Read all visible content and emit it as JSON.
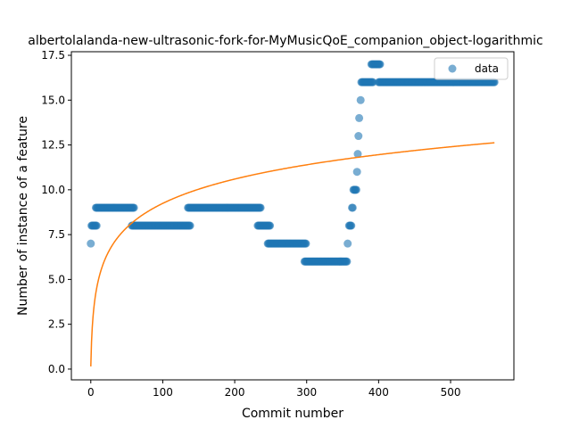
{
  "chart_data": {
    "type": "scatter",
    "title": "albertolalanda-new-ultrasonic-fork-for-MyMusicQoE_companion_object-logarithmic",
    "xlabel": "Commit number",
    "ylabel": "Number of instance of a feature",
    "xlim": [
      -27,
      588
    ],
    "ylim": [
      -0.6,
      17.7
    ],
    "xticks": [
      0,
      100,
      200,
      300,
      400,
      500
    ],
    "yticks": [
      0.0,
      2.5,
      5.0,
      7.5,
      10.0,
      12.5,
      15.0,
      17.5
    ],
    "xtick_labels": [
      "0",
      "100",
      "200",
      "300",
      "400",
      "500"
    ],
    "ytick_labels": [
      "0.0",
      "2.5",
      "5.0",
      "7.5",
      "10.0",
      "12.5",
      "15.0",
      "17.5"
    ],
    "legend": {
      "position": "top-right",
      "entries": [
        "data"
      ]
    },
    "grid": false,
    "scatter_color": "#1f77b4",
    "fit_color": "#ff7f0e",
    "series": [
      {
        "name": "data",
        "kind": "scatter",
        "segments": [
          {
            "x_start": 0,
            "x_end": 0,
            "y": 7
          },
          {
            "x_start": 1,
            "x_end": 8,
            "y": 8
          },
          {
            "x_start": 7,
            "x_end": 60,
            "y": 9
          },
          {
            "x_start": 57,
            "x_end": 138,
            "y": 8
          },
          {
            "x_start": 135,
            "x_end": 236,
            "y": 9
          },
          {
            "x_start": 232,
            "x_end": 249,
            "y": 8
          },
          {
            "x_start": 246,
            "x_end": 299,
            "y": 7
          },
          {
            "x_start": 297,
            "x_end": 356,
            "y": 6
          },
          {
            "x_start": 357,
            "x_end": 357,
            "y": 7
          },
          {
            "x_start": 359,
            "x_end": 362,
            "y": 8
          },
          {
            "x_start": 363,
            "x_end": 364,
            "y": 9
          },
          {
            "x_start": 365,
            "x_end": 369,
            "y": 10
          },
          {
            "x_start": 370,
            "x_end": 370,
            "y": 11
          },
          {
            "x_start": 371,
            "x_end": 371,
            "y": 12
          },
          {
            "x_start": 372,
            "x_end": 372,
            "y": 13
          },
          {
            "x_start": 373,
            "x_end": 373,
            "y": 14
          },
          {
            "x_start": 375,
            "x_end": 375,
            "y": 15
          },
          {
            "x_start": 376,
            "x_end": 392,
            "y": 16
          },
          {
            "x_start": 390,
            "x_end": 402,
            "y": 17
          },
          {
            "x_start": 400,
            "x_end": 561,
            "y": 16
          }
        ]
      },
      {
        "name": "",
        "kind": "line",
        "model": "logarithmic",
        "a": 0.15,
        "b": 1.97,
        "x_start": 0,
        "x_end": 561
      }
    ]
  }
}
